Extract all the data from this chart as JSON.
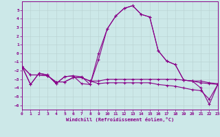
{
  "xlabel": "Windchill (Refroidissement éolien,°C)",
  "background_color": "#cce8e8",
  "grid_color": "#b8d0d0",
  "line_color": "#880088",
  "xlim": [
    0,
    23
  ],
  "ylim": [
    -6.5,
    6.0
  ],
  "xticks": [
    0,
    1,
    2,
    3,
    4,
    5,
    6,
    7,
    8,
    9,
    10,
    11,
    12,
    13,
    14,
    15,
    16,
    17,
    18,
    19,
    20,
    21,
    22,
    23
  ],
  "yticks": [
    -6,
    -5,
    -4,
    -3,
    -2,
    -1,
    0,
    1,
    2,
    3,
    4,
    5
  ],
  "series1_x": [
    0,
    1,
    2,
    3,
    4,
    5,
    6,
    7,
    8,
    9,
    10,
    11,
    12,
    13,
    14,
    15,
    16,
    17,
    18,
    19,
    20,
    21,
    22,
    23
  ],
  "series1_y": [
    -1.5,
    -3.6,
    -2.3,
    -2.5,
    -3.5,
    -2.7,
    -2.6,
    -3.5,
    -3.6,
    -0.7,
    2.8,
    4.3,
    5.2,
    5.5,
    4.5,
    4.2,
    0.3,
    -0.9,
    -1.3,
    -3.1,
    -3.2,
    -4.0,
    -5.9,
    -3.6
  ],
  "series2_x": [
    0,
    1,
    2,
    3,
    4,
    5,
    6,
    7,
    8,
    9,
    10,
    11,
    12,
    13,
    14,
    15,
    16,
    17,
    18,
    19,
    20,
    21,
    22,
    23
  ],
  "series2_y": [
    -1.5,
    -3.6,
    -2.3,
    -2.5,
    -3.5,
    -2.7,
    -2.6,
    -2.7,
    -3.6,
    0.0,
    2.8,
    4.3,
    5.2,
    5.5,
    4.5,
    4.2,
    0.3,
    -0.9,
    -1.3,
    -3.1,
    -3.2,
    -3.4,
    -3.5,
    -3.6
  ],
  "series3_x": [
    0,
    1,
    2,
    3,
    4,
    5,
    6,
    7,
    8,
    9,
    10,
    11,
    12,
    13,
    14,
    15,
    16,
    17,
    18,
    19,
    20,
    21,
    22,
    23
  ],
  "series3_y": [
    -1.5,
    -2.5,
    -2.5,
    -2.6,
    -3.3,
    -3.3,
    -2.8,
    -2.8,
    -3.2,
    -3.2,
    -3.0,
    -3.0,
    -3.0,
    -3.0,
    -3.0,
    -3.0,
    -3.0,
    -3.0,
    -3.0,
    -3.1,
    -3.2,
    -3.2,
    -3.4,
    -3.5
  ],
  "series4_x": [
    0,
    1,
    2,
    3,
    4,
    5,
    6,
    7,
    8,
    9,
    10,
    11,
    12,
    13,
    14,
    15,
    16,
    17,
    18,
    19,
    20,
    21,
    22,
    23
  ],
  "series4_y": [
    -1.5,
    -2.5,
    -2.5,
    -2.6,
    -3.3,
    -3.3,
    -2.8,
    -2.8,
    -3.2,
    -3.5,
    -3.4,
    -3.4,
    -3.4,
    -3.4,
    -3.4,
    -3.4,
    -3.6,
    -3.7,
    -3.8,
    -4.0,
    -4.2,
    -4.3,
    -5.3,
    -3.6
  ]
}
